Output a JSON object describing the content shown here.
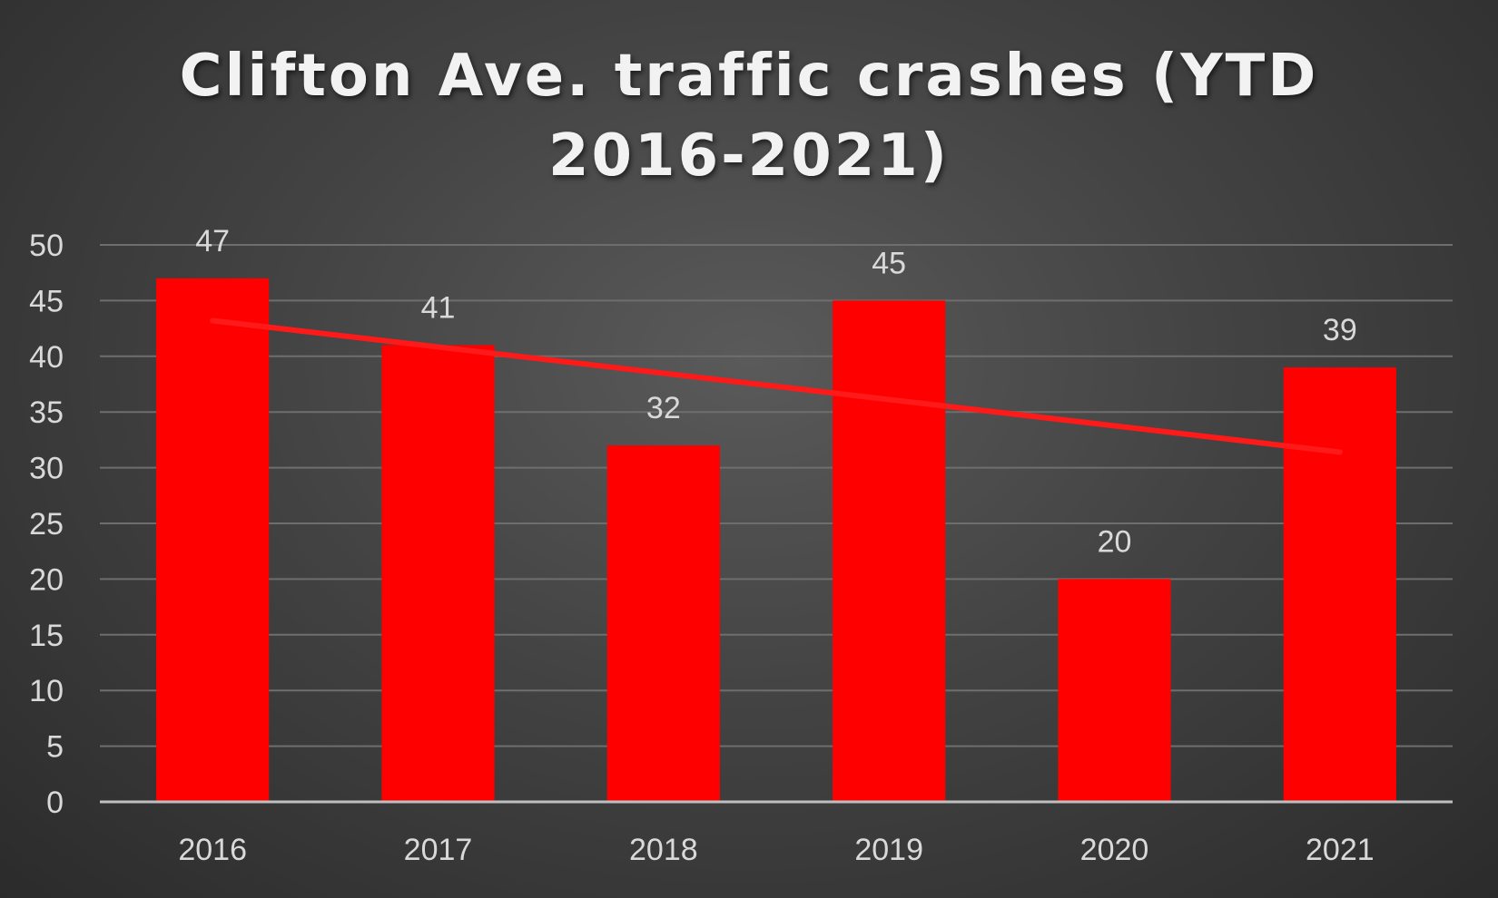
{
  "chart_data": {
    "type": "bar",
    "title": "Clifton Ave. traffic crashes (YTD 2016-2021)",
    "categories": [
      "2016",
      "2017",
      "2018",
      "2019",
      "2020",
      "2021"
    ],
    "values": [
      47,
      41,
      32,
      45,
      20,
      39
    ],
    "data_labels": [
      "47",
      "41",
      "32",
      "45",
      "20",
      "39"
    ],
    "ylim": [
      0,
      50
    ],
    "yticks": [
      0,
      5,
      10,
      15,
      20,
      25,
      30,
      35,
      40,
      45,
      50
    ],
    "xlabel": "",
    "ylabel": "",
    "grid": true,
    "legend": "none",
    "bar_color": "#ff0000",
    "trendline": {
      "type": "linear",
      "color": "#ff1a1a",
      "start_value": 43.2,
      "end_value": 31.4
    }
  }
}
